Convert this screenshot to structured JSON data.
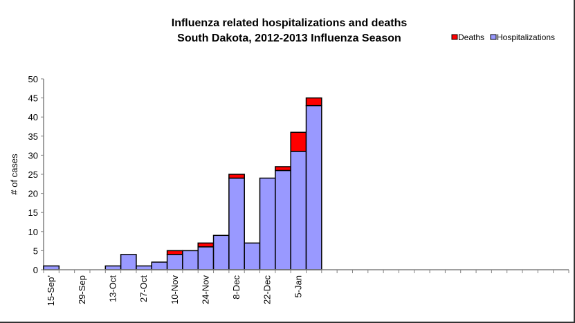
{
  "chart_data": {
    "type": "bar",
    "stacked": true,
    "title": [
      "Influenza related hospitalizations and deaths",
      "South Dakota, 2012-2013 Influenza Season"
    ],
    "xlabel": "",
    "ylabel": "# of cases",
    "ylim": [
      0,
      50
    ],
    "yticks": [
      "0",
      "5",
      "10",
      "15",
      "20",
      "25",
      "30",
      "35",
      "40",
      "45",
      "50"
    ],
    "grid": false,
    "legend_position": "top-right",
    "num_slots": 34,
    "x_tick_labels": [
      {
        "slot": 0,
        "label": "15-Sep'"
      },
      {
        "slot": 2,
        "label": "29-Sep"
      },
      {
        "slot": 4,
        "label": "13-Oct"
      },
      {
        "slot": 6,
        "label": "27-Oct"
      },
      {
        "slot": 8,
        "label": "10-Nov"
      },
      {
        "slot": 10,
        "label": "24-Nov"
      },
      {
        "slot": 12,
        "label": "8-Dec"
      },
      {
        "slot": 14,
        "label": "22-Dec"
      },
      {
        "slot": 16,
        "label": "5-Jan"
      }
    ],
    "series": [
      {
        "name": "Hospitalizations",
        "color": "#9999ff",
        "values": [
          1,
          0,
          0,
          0,
          1,
          4,
          1,
          2,
          4,
          5,
          6,
          9,
          24,
          7,
          24,
          26,
          31,
          43
        ]
      },
      {
        "name": "Deaths",
        "color": "#ff0000",
        "values": [
          0,
          0,
          0,
          0,
          0,
          0,
          0,
          0,
          1,
          0,
          1,
          0,
          1,
          0,
          0,
          1,
          5,
          2
        ]
      }
    ],
    "legend": [
      "Deaths",
      "Hospitalizations"
    ]
  }
}
